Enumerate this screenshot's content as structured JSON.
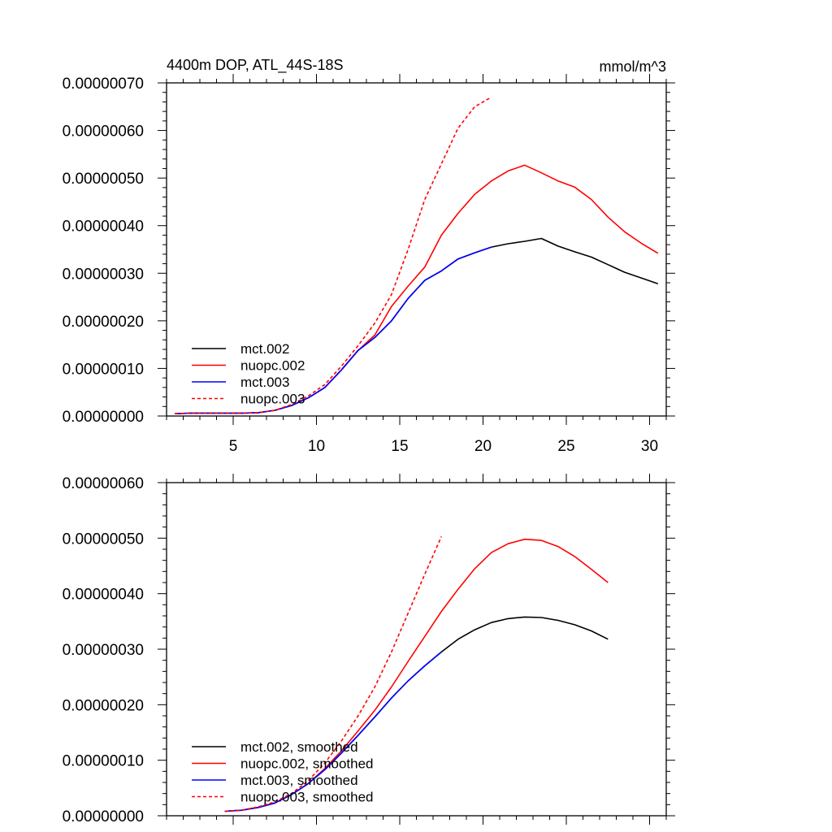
{
  "chart_data": [
    {
      "type": "line",
      "title": "4400m DOP, ATL_44S-18S",
      "units": "mmol/m^3",
      "xlim": [
        1,
        31
      ],
      "ylim": [
        0,
        7e-07
      ],
      "xticks": [
        5,
        10,
        15,
        20,
        25,
        30
      ],
      "xtick_labels": [
        "5",
        "10",
        "15",
        "20",
        "25",
        "30"
      ],
      "yticks": [
        0,
        1e-07,
        2e-07,
        3e-07,
        4e-07,
        5e-07,
        6e-07,
        7e-07
      ],
      "ytick_labels": [
        "0.00000000",
        "0.00000010",
        "0.00000020",
        "0.00000030",
        "0.00000040",
        "0.00000050",
        "0.00000060",
        "0.00000070"
      ],
      "legend_position": "lower-left",
      "series": [
        {
          "name": "mct.002",
          "color": "#000000",
          "dash": "solid",
          "x": [
            1.5,
            2.5,
            3.5,
            4.5,
            5.5,
            6.5,
            7.5,
            8.5,
            9.5,
            10.5,
            11.5,
            12.5,
            13.5,
            14.5,
            15.5,
            16.5,
            17.5,
            18.5,
            19.5,
            20.5,
            21.5,
            22.5,
            23.5,
            24.5,
            25.5,
            26.5,
            27.5,
            28.5,
            29.5,
            30.5
          ],
          "values": [
            5e-09,
            6e-09,
            6e-09,
            6e-09,
            6e-09,
            7e-09,
            1.2e-08,
            2.2e-08,
            3.8e-08,
            6e-08,
            9.7e-08,
            1.38e-07,
            1.65e-07,
            2e-07,
            2.47e-07,
            2.85e-07,
            3.05e-07,
            3.3e-07,
            3.43e-07,
            3.55e-07,
            3.62e-07,
            3.67e-07,
            3.73e-07,
            3.57e-07,
            3.45e-07,
            3.34e-07,
            3.18e-07,
            3.02e-07,
            2.9e-07,
            2.78e-07
          ]
        },
        {
          "name": "nuopc.002",
          "color": "#ff0000",
          "dash": "solid",
          "x": [
            1.5,
            2.5,
            3.5,
            4.5,
            5.5,
            6.5,
            7.5,
            8.5,
            9.5,
            10.5,
            11.5,
            12.5,
            13.5,
            14.5,
            15.5,
            16.5,
            17.5,
            18.5,
            19.5,
            20.5,
            21.5,
            22.5,
            23.5,
            24.5,
            25.5,
            26.5,
            27.5,
            28.5,
            29.5,
            30.5
          ],
          "values": [
            5e-09,
            6e-09,
            6e-09,
            6e-09,
            6e-09,
            7e-09,
            1.2e-08,
            2.2e-08,
            3.8e-08,
            6e-08,
            9.7e-08,
            1.38e-07,
            1.7e-07,
            2.3e-07,
            2.73e-07,
            3.13e-07,
            3.8e-07,
            4.26e-07,
            4.66e-07,
            4.94e-07,
            5.15e-07,
            5.27e-07,
            5.11e-07,
            4.94e-07,
            4.81e-07,
            4.55e-07,
            4.18e-07,
            3.87e-07,
            3.63e-07,
            3.42e-07
          ]
        },
        {
          "name": "mct.003",
          "color": "#0000ff",
          "dash": "solid",
          "x": [
            1.5,
            2.5,
            3.5,
            4.5,
            5.5,
            6.5,
            7.5,
            8.5,
            9.5,
            10.5,
            11.5,
            12.5,
            13.5,
            14.5,
            15.5,
            16.5,
            17.5,
            18.5,
            19.5,
            20.5
          ],
          "values": [
            5e-09,
            6e-09,
            6e-09,
            6e-09,
            6e-09,
            7e-09,
            1.2e-08,
            2.2e-08,
            3.8e-08,
            6e-08,
            9.7e-08,
            1.38e-07,
            1.65e-07,
            2e-07,
            2.47e-07,
            2.85e-07,
            3.05e-07,
            3.3e-07,
            3.43e-07,
            3.55e-07
          ]
        },
        {
          "name": "nuopc.003",
          "color": "#ff0000",
          "dash": "dashed",
          "x": [
            1.5,
            2.5,
            3.5,
            4.5,
            5.5,
            6.5,
            7.5,
            8.5,
            9.5,
            10.5,
            11.5,
            12.5,
            13.5,
            14.5,
            15.5,
            16.5,
            17.5,
            18.5,
            19.5,
            20.5
          ],
          "values": [
            5e-09,
            6e-09,
            6e-09,
            6e-09,
            6e-09,
            7e-09,
            1.2e-08,
            2.4e-08,
            4.2e-08,
            6.6e-08,
            1.05e-07,
            1.48e-07,
            1.95e-07,
            2.55e-07,
            3.5e-07,
            4.55e-07,
            5.3e-07,
            6.05e-07,
            6.5e-07,
            6.7e-07
          ]
        }
      ]
    },
    {
      "type": "line",
      "title": "",
      "units": "",
      "xlim": [
        1,
        31
      ],
      "ylim": [
        0,
        6e-07
      ],
      "xticks": [
        5,
        10,
        15,
        20,
        25,
        30
      ],
      "xtick_labels": [],
      "yticks": [
        0,
        1e-07,
        2e-07,
        3e-07,
        4e-07,
        5e-07,
        6e-07
      ],
      "ytick_labels": [
        "0.00000000",
        "0.00000010",
        "0.00000020",
        "0.00000030",
        "0.00000040",
        "0.00000050",
        "0.00000060"
      ],
      "legend_position": "lower-left",
      "series": [
        {
          "name": "mct.002, smoothed",
          "color": "#000000",
          "dash": "solid",
          "x": [
            4.5,
            5.5,
            6.5,
            7.5,
            8.5,
            9.5,
            10.5,
            11.5,
            12.5,
            13.5,
            14.5,
            15.5,
            16.5,
            17.5,
            18.5,
            19.5,
            20.5,
            21.5,
            22.5,
            23.5,
            24.5,
            25.5,
            26.5,
            27.5
          ],
          "values": [
            8e-09,
            1e-08,
            1.5e-08,
            2.3e-08,
            3.8e-08,
            5.8e-08,
            8.3e-08,
            1.13e-07,
            1.45e-07,
            1.78e-07,
            2.12e-07,
            2.43e-07,
            2.7e-07,
            2.95e-07,
            3.18e-07,
            3.35e-07,
            3.48e-07,
            3.55e-07,
            3.58e-07,
            3.57e-07,
            3.52e-07,
            3.44e-07,
            3.33e-07,
            3.18e-07
          ]
        },
        {
          "name": "nuopc.002, smoothed",
          "color": "#ff0000",
          "dash": "solid",
          "x": [
            4.5,
            5.5,
            6.5,
            7.5,
            8.5,
            9.5,
            10.5,
            11.5,
            12.5,
            13.5,
            14.5,
            15.5,
            16.5,
            17.5,
            18.5,
            19.5,
            20.5,
            21.5,
            22.5,
            23.5,
            24.5,
            25.5,
            26.5,
            27.5
          ],
          "values": [
            8e-09,
            1e-08,
            1.5e-08,
            2.3e-08,
            3.8e-08,
            5.8e-08,
            8.5e-08,
            1.17e-07,
            1.53e-07,
            1.9e-07,
            2.32e-07,
            2.78e-07,
            3.23e-07,
            3.68e-07,
            4.08e-07,
            4.45e-07,
            4.74e-07,
            4.9e-07,
            4.98e-07,
            4.96e-07,
            4.85e-07,
            4.67e-07,
            4.44e-07,
            4.2e-07
          ]
        },
        {
          "name": "mct.003, smoothed",
          "color": "#0000ff",
          "dash": "solid",
          "x": [
            4.5,
            5.5,
            6.5,
            7.5,
            8.5,
            9.5,
            10.5,
            11.5,
            12.5,
            13.5,
            14.5,
            15.5,
            16.5,
            17.5
          ],
          "values": [
            8e-09,
            1e-08,
            1.5e-08,
            2.3e-08,
            3.8e-08,
            5.8e-08,
            8.3e-08,
            1.13e-07,
            1.45e-07,
            1.78e-07,
            2.12e-07,
            2.43e-07,
            2.7e-07,
            2.95e-07
          ]
        },
        {
          "name": "nuopc.003, smoothed",
          "color": "#ff0000",
          "dash": "dashed",
          "x": [
            4.5,
            5.5,
            6.5,
            7.5,
            8.5,
            9.5,
            10.5,
            11.5,
            12.5,
            13.5,
            14.5,
            15.5,
            16.5,
            17.5
          ],
          "values": [
            8e-09,
            1e-08,
            1.6e-08,
            2.5e-08,
            4e-08,
            6.3e-08,
            9.5e-08,
            1.35e-07,
            1.8e-07,
            2.32e-07,
            2.95e-07,
            3.65e-07,
            4.35e-07,
            5.03e-07
          ]
        }
      ]
    }
  ]
}
